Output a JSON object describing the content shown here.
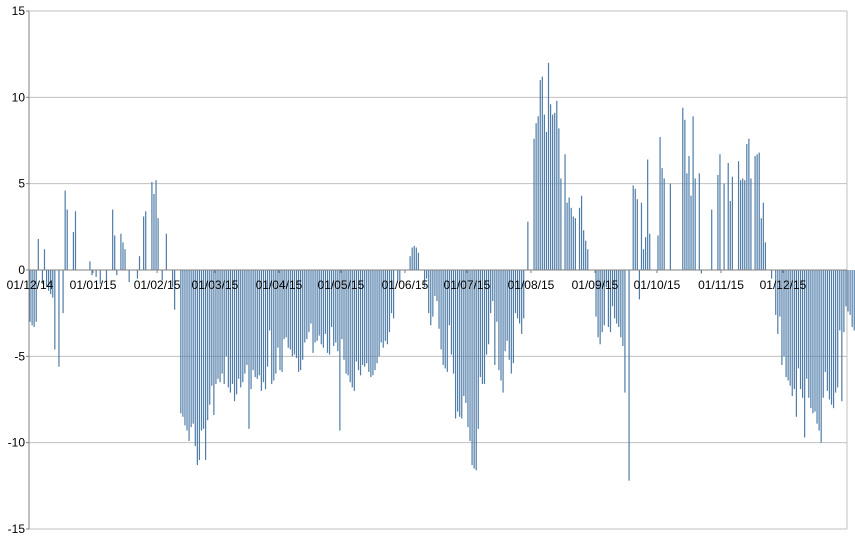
{
  "chart_data": {
    "type": "bar",
    "title": "",
    "xlabel": "",
    "ylabel": "",
    "ylim": [
      -15,
      15
    ],
    "yticks": [
      -15,
      -10,
      -5,
      0,
      5,
      10,
      15
    ],
    "ytick_labels": [
      "-15",
      "-10",
      "-5",
      "0",
      "5",
      "10",
      "15"
    ],
    "grid": true,
    "legend": "none",
    "bar_color": "#4f7ca8",
    "grid_color": "#c0c0c0",
    "x_start": "01/12/14",
    "x_end": "31/12/15",
    "xtick_labels": [
      "01/12/14",
      "01/01/15",
      "01/02/15",
      "01/03/15",
      "01/04/15",
      "01/05/15",
      "01/06/15",
      "01/07/15",
      "01/08/15",
      "01/09/15",
      "01/10/15",
      "01/11/15",
      "01/12/15"
    ],
    "series": [
      {
        "name": "",
        "values": [
          -3.0,
          -3.2,
          -3.3,
          -3.0,
          1.8,
          0.0,
          -0.8,
          1.2,
          -1.0,
          -1.2,
          -1.4,
          -1.6,
          -4.6,
          0.0,
          -5.6,
          0.0,
          -2.5,
          4.6,
          3.5,
          0.0,
          0.0,
          2.2,
          3.4,
          0.0,
          0.0,
          0.0,
          0.0,
          0.0,
          0.0,
          0.5,
          -0.3,
          0.0,
          -0.4,
          0.0,
          -0.8,
          0.0,
          0.0,
          -0.6,
          0.0,
          0.0,
          3.5,
          2.0,
          -0.3,
          0.0,
          2.1,
          1.6,
          1.2,
          0.0,
          -0.7,
          0.0,
          0.0,
          0.0,
          -0.5,
          0.8,
          0.0,
          3.1,
          3.4,
          0.0,
          0.0,
          5.1,
          4.4,
          5.2,
          3.0,
          0.0,
          -0.6,
          0.0,
          2.1,
          0.0,
          0.0,
          -1.0,
          -2.3,
          0.0,
          0.0,
          -8.3,
          -8.5,
          -9.0,
          -9.3,
          -9.9,
          -9.1,
          -8.9,
          -10.2,
          -11.3,
          -11.0,
          -9.3,
          -9.2,
          -11.0,
          -8.7,
          -7.8,
          -6.7,
          -8.4,
          -6.6,
          -6.3,
          -6.5,
          -6.0,
          -6.6,
          -5.0,
          -6.8,
          -7.1,
          -6.6,
          -7.6,
          -7.2,
          -6.3,
          -6.8,
          -6.5,
          -6.0,
          -5.5,
          -9.2,
          -6.9,
          -5.8,
          -6.2,
          -6.3,
          -6.1,
          -7.0,
          -6.5,
          -6.9,
          -5.6,
          -3.5,
          -6.6,
          -6.4,
          -6.0,
          -4.5,
          -5.8,
          -5.9,
          -4.0,
          -3.9,
          -4.5,
          -4.6,
          -5.0,
          -4.9,
          -5.1,
          -5.9,
          -5.8,
          -5.2,
          -4.2,
          -4.0,
          -3.6,
          -3.1,
          -4.8,
          -4.2,
          -4.1,
          -3.8,
          -4.3,
          -4.5,
          -3.7,
          -4.8,
          -4.9,
          -3.3,
          -4.4,
          -4.2,
          -4.7,
          -9.3,
          -4.0,
          -5.2,
          -6.0,
          -6.1,
          -6.5,
          -6.8,
          -7.0,
          -5.3,
          -5.8,
          -6.1,
          -5.5,
          -5.6,
          -5.4,
          -5.9,
          -6.2,
          -6.1,
          -5.8,
          -5.4,
          -5.0,
          -4.2,
          -4.5,
          -4.1,
          -4.3,
          -3.6,
          -2.5,
          -2.8,
          0.0,
          -0.6,
          -0.8,
          0.0,
          0.0,
          0.0,
          0.0,
          0.8,
          1.3,
          1.4,
          1.3,
          1.0,
          0.0,
          0.0,
          -1.0,
          -0.5,
          -2.5,
          -3.2,
          -2.7,
          -1.5,
          -1.8,
          -3.4,
          -4.6,
          -5.5,
          -5.7,
          -5.9,
          -3.2,
          -4.9,
          -6.0,
          -8.6,
          -8.2,
          -8.5,
          -8.6,
          -7.3,
          -7.7,
          -9.1,
          -9.9,
          -11.3,
          -11.5,
          -11.6,
          -9.2,
          -6.2,
          -6.6,
          -6.6,
          -4.9,
          -4.3,
          -2.5,
          -1.8,
          -5.5,
          -3.0,
          -5.8,
          -6.4,
          -7.1,
          -4.7,
          -4.1,
          -5.2,
          -6.0,
          -5.4,
          -2.5,
          -2.8,
          -3.1,
          -3.7,
          -2.8,
          0.0,
          2.8,
          0.0,
          0.0,
          7.6,
          8.5,
          8.9,
          11.0,
          11.2,
          9.0,
          8.0,
          12.0,
          9.6,
          9.0,
          9.1,
          9.8,
          8.2,
          5.3,
          0.0,
          6.7,
          3.9,
          4.2,
          3.6,
          3.1,
          3.0,
          0.0,
          3.6,
          4.3,
          2.3,
          1.7,
          1.2,
          0.0,
          0.0,
          0.0,
          -2.7,
          -3.9,
          -4.3,
          -3.6,
          -3.2,
          -1.0,
          -3.3,
          -3.6,
          -2.1,
          -2.8,
          -3.1,
          -3.3,
          -3.9,
          -4.4,
          -7.1,
          0.0,
          -12.2,
          0.0,
          4.9,
          4.7,
          4.1,
          -1.7,
          3.9,
          1.2,
          1.9,
          6.4,
          2.1,
          0.0,
          0.0,
          0.0,
          2.0,
          7.7,
          5.9,
          5.3,
          0.0,
          0.0,
          5.0,
          0.0,
          0.0,
          0.0,
          0.0,
          0.0,
          9.4,
          8.7,
          5.6,
          6.6,
          4.3,
          8.9,
          5.3,
          0.0,
          5.6,
          -0.2,
          0.0,
          0.0,
          0.0,
          0.0,
          3.5,
          0.0,
          0.0,
          5.5,
          6.7,
          0.0,
          5.0,
          0.0,
          6.2,
          4.0,
          5.4,
          0.0,
          0.0,
          6.3,
          5.2,
          5.3,
          5.2,
          7.3,
          7.6,
          5.3,
          0.0,
          6.6,
          6.7,
          6.8,
          3.0,
          3.9,
          1.6,
          0.0,
          0.0,
          -0.5,
          0.0,
          -2.6,
          -3.7,
          -2.7,
          -5.5,
          -5.0,
          -6.2,
          -6.4,
          -6.7,
          -7.3,
          -6.9,
          -8.5,
          -5.7,
          -6.9,
          -7.4,
          -9.7,
          -6.3,
          -7.4,
          -8.0,
          -8.3,
          -8.2,
          -8.9,
          -9.3,
          -10.0,
          -7.4,
          -5.9,
          -7.0,
          -7.5,
          -7.8,
          -8.0,
          -7.1,
          -6.8,
          -3.5,
          -7.6,
          -3.6,
          -2.1,
          -2.4,
          -2.6,
          -3.3,
          -3.5,
          -4.7,
          -5.5,
          0.0,
          0.0,
          -7.7,
          -8.5
        ]
      }
    ]
  }
}
